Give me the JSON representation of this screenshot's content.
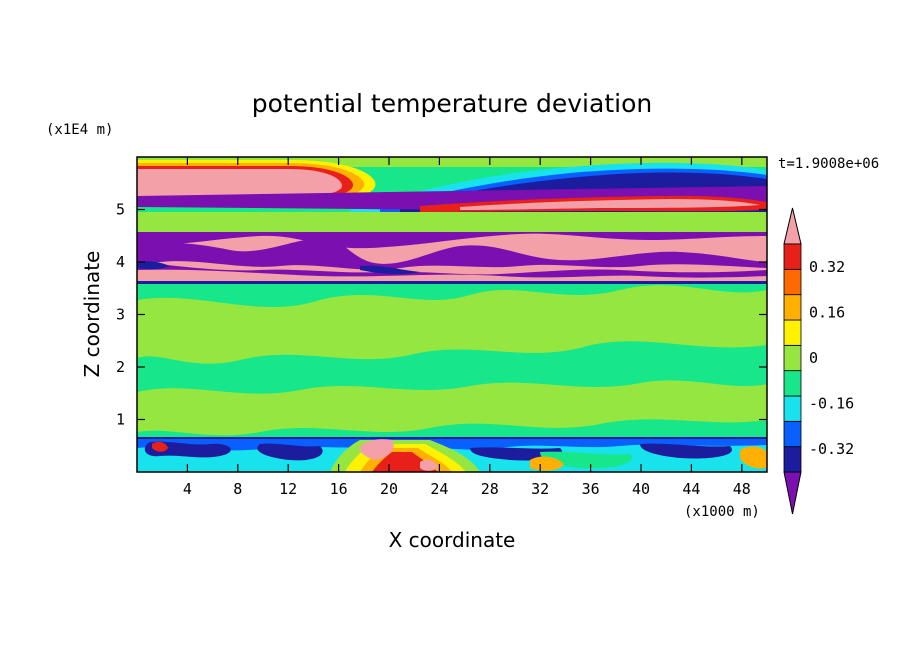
{
  "chart_data": {
    "type": "heatmap",
    "title": "potential temperature deviation",
    "xlabel": "X coordinate",
    "ylabel": "Z coordinate",
    "x_unit": "(x1000 m)",
    "y_unit": "(x1E4 m)",
    "time_label": "t=1.9008e+06",
    "xlim": [
      0,
      50
    ],
    "ylim": [
      0,
      6
    ],
    "x_ticks": [
      4,
      8,
      12,
      16,
      20,
      24,
      28,
      32,
      36,
      40,
      44,
      48
    ],
    "y_ticks": [
      1,
      2,
      3,
      4,
      5
    ],
    "colorbar": {
      "levels": [
        -0.4,
        -0.32,
        -0.24,
        -0.16,
        -0.08,
        0,
        0.08,
        0.16,
        0.24,
        0.32,
        0.4
      ],
      "labels": [
        "0.32",
        "0.16",
        "0",
        "-0.16",
        "-0.32"
      ],
      "label_values": [
        0.32,
        0.16,
        0,
        -0.16,
        -0.32
      ],
      "colors": [
        "#7b0fb0",
        "#1c1c9e",
        "#0a5fff",
        "#18e3ec",
        "#18e68a",
        "#96e642",
        "#fff200",
        "#ffb000",
        "#ff6a00",
        "#e8201a",
        "#f4a0a8"
      ],
      "extend": "both"
    },
    "regions": [
      {
        "z_range": [
          0,
          0.6
        ],
        "description": "near-surface turbulent layer, mixed negative and positive deviations"
      },
      {
        "z_range": [
          0.6,
          3.6
        ],
        "description": "near-zero deviation (-0.08 to 0.08)"
      },
      {
        "z_range": [
          3.6,
          4.6
        ],
        "description": "alternating strong positive (>0.4) and strong negative (<-0.4) bands"
      },
      {
        "z_range": [
          4.6,
          5.1
        ],
        "description": "near-zero band"
      },
      {
        "z_range": [
          5.1,
          6.0
        ],
        "description": "strong positive layer below strong negative layer aloft"
      }
    ]
  }
}
